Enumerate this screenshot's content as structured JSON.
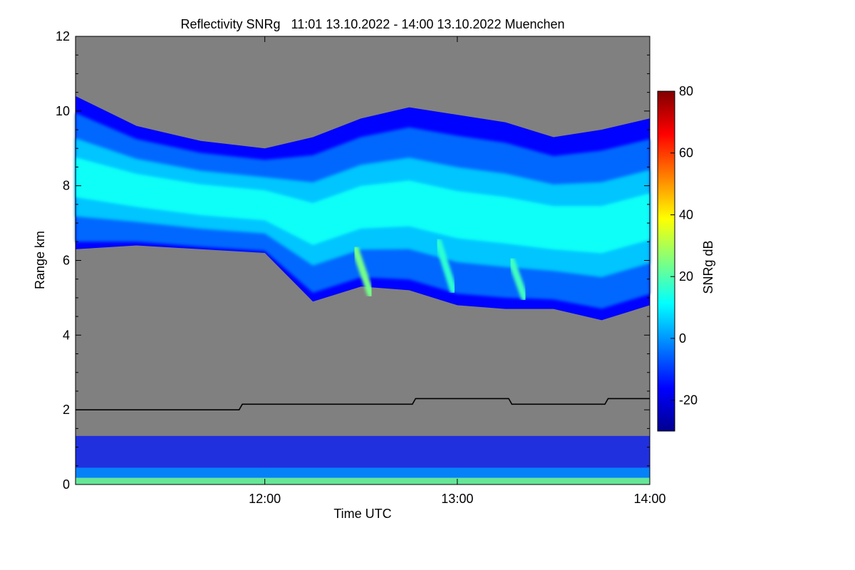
{
  "chart_data": {
    "type": "heatmap",
    "title": "Reflectivity SNRg   11:01 13.10.2022 - 14:00 13.10.2022 Muenchen",
    "xlabel": "Time UTC",
    "ylabel": "Range km",
    "xlim": [
      "11:01",
      "14:00"
    ],
    "ylim": [
      0,
      12
    ],
    "x_ticks": [
      "12:00",
      "13:00",
      "14:00"
    ],
    "y_ticks": [
      0,
      2,
      4,
      6,
      8,
      10,
      12
    ],
    "colorbar": {
      "label": "SNRg dB",
      "range": [
        -30,
        80
      ],
      "ticks": [
        -20,
        0,
        20,
        40,
        60,
        80
      ],
      "colormap": "jet"
    },
    "background_color": "#808080",
    "cloud_layer": {
      "description": "main echo layer",
      "time_utc": [
        "11:01",
        "11:20",
        "11:40",
        "12:00",
        "12:15",
        "12:30",
        "12:45",
        "13:00",
        "13:15",
        "13:30",
        "13:45",
        "14:00"
      ],
      "base_km": [
        6.3,
        6.4,
        6.3,
        6.2,
        4.9,
        5.3,
        5.2,
        4.8,
        4.7,
        4.7,
        4.4,
        4.8
      ],
      "top_km": [
        10.4,
        9.6,
        9.2,
        9.0,
        9.3,
        9.8,
        10.1,
        9.9,
        9.7,
        9.3,
        9.5,
        9.8
      ],
      "peak_snr_db": 25
    },
    "near_surface_clutter": {
      "top_km": 1.3,
      "snr_db_range": [
        -25,
        30
      ]
    },
    "boundary_layer_line": {
      "color": "#000000",
      "time_utc": [
        "11:01",
        "11:52",
        "11:53",
        "12:46",
        "12:47",
        "13:16",
        "13:17",
        "13:46",
        "13:47",
        "14:00"
      ],
      "height_km": [
        2.0,
        2.0,
        2.15,
        2.15,
        2.3,
        2.3,
        2.15,
        2.15,
        2.3,
        2.3
      ]
    }
  }
}
